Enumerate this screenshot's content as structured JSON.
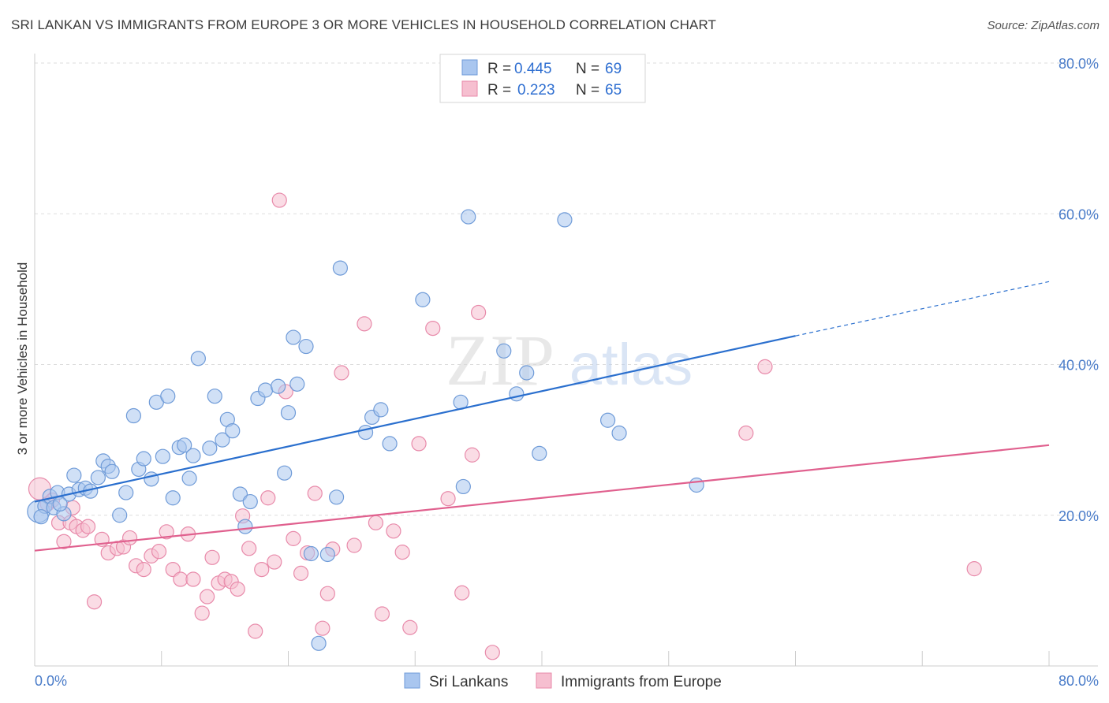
{
  "title": "SRI LANKAN VS IMMIGRANTS FROM EUROPE 3 OR MORE VEHICLES IN HOUSEHOLD CORRELATION CHART",
  "source": "Source: ZipAtlas.com",
  "watermark": {
    "zip": "ZIP",
    "atlas": "atlas"
  },
  "colors": {
    "blue_fill": "#a9c6ef",
    "blue_stroke": "#6f9bd8",
    "blue_line": "#2a6fce",
    "pink_fill": "#f6bfd0",
    "pink_stroke": "#e88aaa",
    "pink_line": "#e0608e",
    "tick_text": "#4a7cc9",
    "grid": "#dddddd"
  },
  "legend_top": {
    "rows": [
      {
        "r_label": "R =",
        "r_value": "0.445",
        "n_label": "N =",
        "n_value": "69",
        "series": "blue"
      },
      {
        "r_label": "R =",
        "r_value": "0.223",
        "n_label": "N =",
        "n_value": "65",
        "series": "pink"
      }
    ]
  },
  "legend_bottom": {
    "items": [
      "Sri Lankans",
      "Immigrants from Europe"
    ]
  },
  "chart_data": {
    "type": "scatter",
    "title": "SRI LANKAN VS IMMIGRANTS FROM EUROPE 3 OR MORE VEHICLES IN HOUSEHOLD CORRELATION CHART",
    "xlabel": "",
    "ylabel": "3 or more Vehicles in Household",
    "xlim": [
      0,
      80
    ],
    "ylim": [
      0,
      82
    ],
    "x_tick_labels": [
      "0.0%",
      "80.0%"
    ],
    "y_ticks": [
      20,
      40,
      60,
      80
    ],
    "y_tick_labels": [
      "20.0%",
      "40.0%",
      "60.0%",
      "80.0%"
    ],
    "grid": true,
    "legend_position": "top-center",
    "series": [
      {
        "name": "Sri Lankans",
        "color": "#a9c6ef",
        "points": [
          [
            0.3,
            20.5
          ],
          [
            0.8,
            21.2
          ],
          [
            1.2,
            22.5
          ],
          [
            1.5,
            21.0
          ],
          [
            1.8,
            23.0
          ],
          [
            2.3,
            20.2
          ],
          [
            2.7,
            22.8
          ],
          [
            3.1,
            25.3
          ],
          [
            3.5,
            23.4
          ],
          [
            4.0,
            23.6
          ],
          [
            4.4,
            23.2
          ],
          [
            5.0,
            25.0
          ],
          [
            5.4,
            27.2
          ],
          [
            5.8,
            26.5
          ],
          [
            6.1,
            25.8
          ],
          [
            6.7,
            20.0
          ],
          [
            7.2,
            23.0
          ],
          [
            7.8,
            33.2
          ],
          [
            8.2,
            26.1
          ],
          [
            8.6,
            27.5
          ],
          [
            9.2,
            24.8
          ],
          [
            9.6,
            35.0
          ],
          [
            10.1,
            27.8
          ],
          [
            10.5,
            35.8
          ],
          [
            10.9,
            22.3
          ],
          [
            11.4,
            29.0
          ],
          [
            11.8,
            29.3
          ],
          [
            12.2,
            24.9
          ],
          [
            12.5,
            27.9
          ],
          [
            12.9,
            40.8
          ],
          [
            13.8,
            28.9
          ],
          [
            14.2,
            35.8
          ],
          [
            14.8,
            30.0
          ],
          [
            15.2,
            32.7
          ],
          [
            15.6,
            31.2
          ],
          [
            16.2,
            22.8
          ],
          [
            16.6,
            18.5
          ],
          [
            17.0,
            21.8
          ],
          [
            17.6,
            35.5
          ],
          [
            18.2,
            36.6
          ],
          [
            19.2,
            37.1
          ],
          [
            19.7,
            25.6
          ],
          [
            20.0,
            33.6
          ],
          [
            20.4,
            43.6
          ],
          [
            20.7,
            37.4
          ],
          [
            21.4,
            42.4
          ],
          [
            21.8,
            14.9
          ],
          [
            22.4,
            3.0
          ],
          [
            23.1,
            14.8
          ],
          [
            23.8,
            22.4
          ],
          [
            24.1,
            52.8
          ],
          [
            26.1,
            31.0
          ],
          [
            26.6,
            33.0
          ],
          [
            27.3,
            34.0
          ],
          [
            28.0,
            29.5
          ],
          [
            30.6,
            48.6
          ],
          [
            33.6,
            35.0
          ],
          [
            33.8,
            23.8
          ],
          [
            34.2,
            59.6
          ],
          [
            37.0,
            41.8
          ],
          [
            38.0,
            36.1
          ],
          [
            38.8,
            38.9
          ],
          [
            39.8,
            28.2
          ],
          [
            41.8,
            59.2
          ],
          [
            45.2,
            32.6
          ],
          [
            46.1,
            30.9
          ],
          [
            52.2,
            24.0
          ],
          [
            0.5,
            19.8
          ],
          [
            2.0,
            21.5
          ]
        ]
      },
      {
        "name": "Immigrants from Europe",
        "color": "#f6bfd0",
        "points": [
          [
            0.4,
            23.5
          ],
          [
            1.0,
            21.5
          ],
          [
            1.4,
            22.0
          ],
          [
            1.9,
            19.0
          ],
          [
            2.3,
            16.5
          ],
          [
            2.8,
            19.0
          ],
          [
            3.3,
            18.5
          ],
          [
            3.8,
            18.0
          ],
          [
            4.2,
            18.5
          ],
          [
            4.7,
            8.5
          ],
          [
            5.3,
            16.8
          ],
          [
            5.8,
            15.0
          ],
          [
            6.5,
            15.6
          ],
          [
            7.0,
            15.8
          ],
          [
            7.5,
            17.0
          ],
          [
            8.0,
            13.3
          ],
          [
            8.6,
            12.8
          ],
          [
            9.2,
            14.6
          ],
          [
            9.8,
            15.2
          ],
          [
            10.4,
            17.8
          ],
          [
            10.9,
            12.8
          ],
          [
            11.5,
            11.5
          ],
          [
            12.1,
            17.5
          ],
          [
            12.5,
            11.5
          ],
          [
            13.2,
            7.0
          ],
          [
            13.6,
            9.2
          ],
          [
            14.0,
            14.4
          ],
          [
            14.5,
            11.0
          ],
          [
            15.0,
            11.5
          ],
          [
            15.5,
            11.2
          ],
          [
            16.0,
            10.2
          ],
          [
            16.4,
            19.9
          ],
          [
            16.9,
            15.6
          ],
          [
            17.4,
            4.6
          ],
          [
            17.9,
            12.8
          ],
          [
            18.4,
            22.3
          ],
          [
            18.9,
            13.8
          ],
          [
            19.3,
            61.8
          ],
          [
            19.8,
            36.4
          ],
          [
            20.4,
            16.9
          ],
          [
            21.0,
            12.3
          ],
          [
            21.5,
            15.0
          ],
          [
            22.1,
            22.9
          ],
          [
            22.7,
            5.0
          ],
          [
            23.1,
            9.6
          ],
          [
            23.5,
            15.5
          ],
          [
            24.2,
            38.9
          ],
          [
            25.2,
            16.0
          ],
          [
            26.0,
            45.4
          ],
          [
            26.9,
            19.0
          ],
          [
            27.4,
            6.9
          ],
          [
            28.3,
            17.9
          ],
          [
            29.0,
            15.1
          ],
          [
            29.6,
            5.1
          ],
          [
            30.3,
            29.5
          ],
          [
            31.4,
            44.8
          ],
          [
            32.6,
            22.2
          ],
          [
            33.7,
            9.7
          ],
          [
            34.5,
            28.0
          ],
          [
            35.0,
            46.9
          ],
          [
            36.1,
            1.8
          ],
          [
            57.6,
            39.7
          ],
          [
            56.1,
            30.9
          ],
          [
            74.1,
            12.9
          ],
          [
            3.0,
            21.0
          ]
        ]
      }
    ],
    "trend_lines": [
      {
        "series": "Sri Lankans",
        "from": [
          0,
          21.8
        ],
        "to": [
          60,
          43.8
        ],
        "dashed_to": [
          80,
          51.0
        ]
      },
      {
        "series": "Immigrants from Europe",
        "from": [
          0,
          15.3
        ],
        "to": [
          80,
          29.3
        ]
      }
    ]
  }
}
